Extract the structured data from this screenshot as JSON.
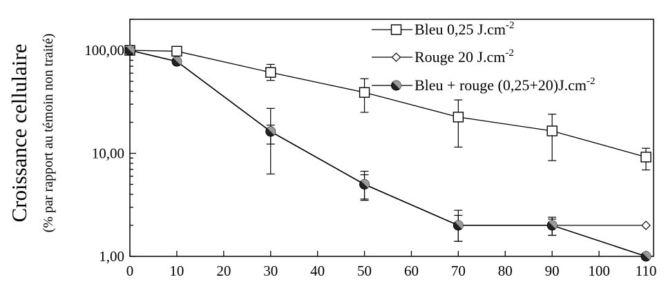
{
  "chart_data": {
    "type": "line",
    "ylabel": "Croissance cellulaire",
    "ylabel_sub": "(% par rapport au témoin non traité)",
    "xlabel": "",
    "y_scale": "log",
    "ylim": [
      1,
      200
    ],
    "xlim": [
      0,
      110
    ],
    "x_ticks": [
      "0",
      "10",
      "20",
      "30",
      "40",
      "50",
      "60",
      "70",
      "80",
      "90",
      "100",
      "110"
    ],
    "y_ticks": [
      {
        "value": 1,
        "label": "1,00"
      },
      {
        "value": 10,
        "label": "10,00"
      },
      {
        "value": 100,
        "label": "100,00"
      }
    ],
    "grid": false,
    "legend_position": "top-right",
    "series": [
      {
        "name": "Bleu 0,25 J.cm",
        "superscript": "-2",
        "marker": "square",
        "x": [
          0,
          10,
          30,
          50,
          70,
          90,
          110
        ],
        "y": [
          100,
          98,
          61,
          39,
          22.5,
          16.5,
          9.2
        ],
        "error": [
          [
            0,
            0
          ],
          [
            0,
            0
          ],
          [
            10,
            12
          ],
          [
            14,
            14
          ],
          [
            11,
            10.5
          ],
          [
            8,
            7.5
          ],
          [
            2.3,
            2
          ]
        ]
      },
      {
        "name": "Rouge 20 J.cm",
        "superscript": "-2",
        "marker": "diamond",
        "x": [
          0,
          10,
          30,
          50,
          70,
          90,
          110
        ],
        "y": [
          100,
          78,
          16.3,
          5,
          2,
          2,
          2
        ],
        "error": [
          [
            0,
            0
          ],
          [
            0,
            0
          ],
          [
            4,
            11
          ],
          [
            1.5,
            1.7
          ],
          [
            0.6,
            0.8
          ],
          [
            0.4,
            0.4
          ],
          [
            0,
            0
          ]
        ]
      },
      {
        "name": "Bleu + rouge (0,25+20)J.cm",
        "superscript": "-2",
        "marker": "half-filled-circle",
        "x": [
          0,
          10,
          30,
          50,
          70,
          90,
          110
        ],
        "y": [
          100,
          78,
          16.3,
          5,
          2,
          2,
          1
        ],
        "error": [
          [
            0,
            0
          ],
          [
            0,
            0
          ],
          [
            10,
            2.5
          ],
          [
            1.4,
            1.2
          ],
          [
            0.6,
            0.5
          ],
          [
            0.4,
            0.3
          ],
          [
            0,
            0
          ]
        ]
      }
    ]
  }
}
